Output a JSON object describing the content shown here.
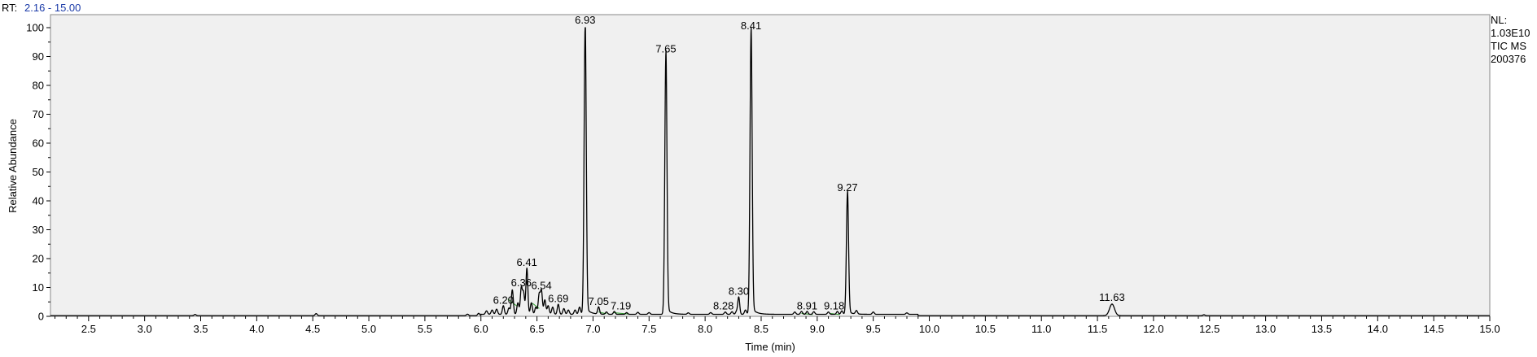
{
  "header": {
    "rt_prefix": "RT:",
    "rt_range": "2.16 - 15.00"
  },
  "info": {
    "nl_label": "NL:",
    "nl_value": "1.03E10",
    "scan_type": "TIC  MS",
    "sample": "200376"
  },
  "colors": {
    "plot_background": "#f0f0f0",
    "trace": "#000000",
    "baseline_marks": "#2ca02c",
    "rt_value": "#1a3aa8"
  },
  "chart_data": {
    "type": "line",
    "xlabel": "Time (min)",
    "ylabel": "Relative Abundance",
    "xlim": [
      2.16,
      15.0
    ],
    "ylim": [
      0,
      100
    ],
    "x_ticks": [
      2.5,
      3.0,
      3.5,
      4.0,
      4.5,
      5.0,
      5.5,
      6.0,
      6.5,
      7.0,
      7.5,
      8.0,
      8.5,
      9.0,
      9.5,
      10.0,
      10.5,
      11.0,
      11.5,
      12.0,
      12.5,
      13.0,
      13.5,
      14.0,
      14.5,
      15.0
    ],
    "x_tick_labels": [
      "2.5",
      "3.0",
      "3.5",
      "4.0",
      "4.5",
      "5.0",
      "5.5",
      "6.0",
      "6.5",
      "7.0",
      "7.5",
      "8.0",
      "8.5",
      "9.0",
      "9.5",
      "10.0",
      "10.5",
      "11.0",
      "11.5",
      "12.0",
      "12.5",
      "13.0",
      "13.5",
      "14.0",
      "14.5",
      "15.0"
    ],
    "y_ticks": [
      0,
      10,
      20,
      30,
      40,
      50,
      60,
      70,
      80,
      90,
      100
    ],
    "y_tick_labels": [
      "0",
      "10",
      "20",
      "30",
      "40",
      "50",
      "60",
      "70",
      "80",
      "90",
      "100"
    ],
    "grid": false,
    "peaks": [
      {
        "rt": 6.2,
        "label": "6.20",
        "height": 3
      },
      {
        "rt": 6.36,
        "label": "6.36",
        "height": 9
      },
      {
        "rt": 6.41,
        "label": "6.41",
        "height": 16
      },
      {
        "rt": 6.54,
        "label": "6.54",
        "height": 8
      },
      {
        "rt": 6.69,
        "label": "6.69",
        "height": 3.5
      },
      {
        "rt": 6.93,
        "label": "6.93",
        "height": 100
      },
      {
        "rt": 7.05,
        "label": "7.05",
        "height": 2.5
      },
      {
        "rt": 7.19,
        "label": "7.19",
        "height": 1
      },
      {
        "rt": 7.65,
        "label": "7.65",
        "height": 90
      },
      {
        "rt": 8.28,
        "label": "8.28",
        "height": 1
      },
      {
        "rt": 8.3,
        "label": "8.30",
        "height": 6
      },
      {
        "rt": 8.41,
        "label": "8.41",
        "height": 98
      },
      {
        "rt": 8.91,
        "label": "8.91",
        "height": 1
      },
      {
        "rt": 9.18,
        "label": "9.18",
        "height": 1
      },
      {
        "rt": 9.27,
        "label": "9.27",
        "height": 42
      },
      {
        "rt": 11.63,
        "label": "11.63",
        "height": 4
      }
    ],
    "minor_peaks": [
      {
        "rt": 3.45,
        "height": 0.4
      },
      {
        "rt": 4.53,
        "height": 0.7
      },
      {
        "rt": 5.88,
        "height": 0.5
      },
      {
        "rt": 5.98,
        "height": 0.8
      },
      {
        "rt": 6.05,
        "height": 1.2
      },
      {
        "rt": 6.1,
        "height": 1.5
      },
      {
        "rt": 6.14,
        "height": 1.8
      },
      {
        "rt": 6.25,
        "height": 2.2
      },
      {
        "rt": 6.28,
        "height": 8.5
      },
      {
        "rt": 6.33,
        "height": 4
      },
      {
        "rt": 6.38,
        "height": 7.5
      },
      {
        "rt": 6.45,
        "height": 4
      },
      {
        "rt": 6.49,
        "height": 2.5
      },
      {
        "rt": 6.52,
        "height": 7
      },
      {
        "rt": 6.57,
        "height": 5
      },
      {
        "rt": 6.6,
        "height": 3
      },
      {
        "rt": 6.64,
        "height": 2.5
      },
      {
        "rt": 6.74,
        "height": 2
      },
      {
        "rt": 6.78,
        "height": 1.5
      },
      {
        "rt": 6.84,
        "height": 1.5
      },
      {
        "rt": 6.88,
        "height": 2.5
      },
      {
        "rt": 7.12,
        "height": 0.8
      },
      {
        "rt": 7.3,
        "height": 0.6
      },
      {
        "rt": 7.4,
        "height": 0.7
      },
      {
        "rt": 7.5,
        "height": 0.6
      },
      {
        "rt": 7.85,
        "height": 0.5
      },
      {
        "rt": 8.05,
        "height": 0.6
      },
      {
        "rt": 8.18,
        "height": 0.8
      },
      {
        "rt": 8.24,
        "height": 0.9
      },
      {
        "rt": 8.36,
        "height": 1.5
      },
      {
        "rt": 8.8,
        "height": 0.8
      },
      {
        "rt": 8.86,
        "height": 1.0
      },
      {
        "rt": 8.97,
        "height": 0.9
      },
      {
        "rt": 9.1,
        "height": 0.8
      },
      {
        "rt": 9.22,
        "height": 1.2
      },
      {
        "rt": 9.35,
        "height": 1.2
      },
      {
        "rt": 9.5,
        "height": 0.8
      },
      {
        "rt": 9.8,
        "height": 0.5
      },
      {
        "rt": 12.45,
        "height": 0.3
      }
    ]
  }
}
